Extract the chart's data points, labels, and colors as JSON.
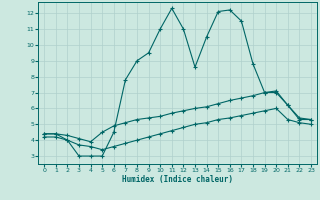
{
  "xlabel": "Humidex (Indice chaleur)",
  "xlim": [
    -0.5,
    23.5
  ],
  "ylim": [
    2.5,
    12.7
  ],
  "yticks": [
    3,
    4,
    5,
    6,
    7,
    8,
    9,
    10,
    11,
    12
  ],
  "xticks": [
    0,
    1,
    2,
    3,
    4,
    5,
    6,
    7,
    8,
    9,
    10,
    11,
    12,
    13,
    14,
    15,
    16,
    17,
    18,
    19,
    20,
    21,
    22,
    23
  ],
  "background_color": "#cce8e0",
  "grid_color": "#b0d0cc",
  "line_color": "#006666",
  "line1_x": [
    0,
    1,
    2,
    3,
    4,
    5,
    6,
    7,
    8,
    9,
    10,
    11,
    12,
    13,
    14,
    15,
    16,
    17,
    18,
    19,
    20,
    21,
    22,
    23
  ],
  "line1_y": [
    4.4,
    4.4,
    4.0,
    3.0,
    3.0,
    3.0,
    4.5,
    7.8,
    9.0,
    9.5,
    11.0,
    12.3,
    11.0,
    8.6,
    10.5,
    12.1,
    12.2,
    11.5,
    8.8,
    7.0,
    7.0,
    6.2,
    5.3,
    5.3
  ],
  "line2_x": [
    0,
    1,
    2,
    3,
    4,
    5,
    6,
    7,
    8,
    9,
    10,
    11,
    12,
    13,
    14,
    15,
    16,
    17,
    18,
    19,
    20,
    21,
    22,
    23
  ],
  "line2_y": [
    4.4,
    4.4,
    4.3,
    4.1,
    3.9,
    4.5,
    4.9,
    5.1,
    5.3,
    5.4,
    5.5,
    5.7,
    5.85,
    6.0,
    6.1,
    6.3,
    6.5,
    6.65,
    6.8,
    7.0,
    7.1,
    6.2,
    5.4,
    5.3
  ],
  "line3_x": [
    0,
    1,
    2,
    3,
    4,
    5,
    6,
    7,
    8,
    9,
    10,
    11,
    12,
    13,
    14,
    15,
    16,
    17,
    18,
    19,
    20,
    21,
    22,
    23
  ],
  "line3_y": [
    4.2,
    4.2,
    4.0,
    3.7,
    3.6,
    3.4,
    3.6,
    3.8,
    4.0,
    4.2,
    4.4,
    4.6,
    4.8,
    5.0,
    5.1,
    5.3,
    5.4,
    5.55,
    5.7,
    5.85,
    6.0,
    5.3,
    5.1,
    5.0
  ]
}
